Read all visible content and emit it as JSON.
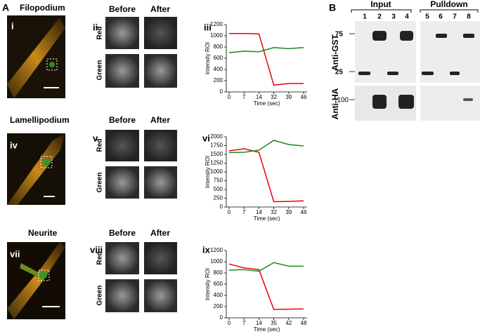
{
  "panel_letters": {
    "a": "A",
    "b": "B"
  },
  "rows": [
    {
      "title": "Filopodium",
      "image": "i",
      "pair": "ii"
    },
    {
      "title": "Lamellipodium",
      "image": "iv",
      "pair": "v"
    },
    {
      "title": "Neurite",
      "image": "vii",
      "pair": "viii"
    }
  ],
  "pair_labels": {
    "before": "Before",
    "after": "After",
    "red": "Red",
    "green": "Green"
  },
  "blot": {
    "groups": [
      "Input",
      "Pulldown"
    ],
    "lanes": [
      "1",
      "2",
      "3",
      "4",
      "5",
      "6",
      "7",
      "8"
    ],
    "markers": [
      "75",
      "25",
      "100"
    ],
    "antibodies": [
      "Anti-GST",
      "Anti-HA"
    ]
  },
  "chart_data": [
    {
      "type": "line",
      "label": "iii",
      "x_label": "Time (sec)",
      "y_label": "Intensity ROI",
      "categories": [
        "0",
        "7",
        "14",
        "32",
        "39",
        "46"
      ],
      "series": [
        {
          "name": "Red",
          "color": "#e8000b",
          "values": [
            1040,
            1040,
            1035,
            120,
            150,
            150
          ]
        },
        {
          "name": "Green",
          "color": "#1a8a1a",
          "values": [
            700,
            725,
            715,
            790,
            770,
            790
          ]
        }
      ],
      "ylim": [
        0,
        1200
      ],
      "yticks": [
        0,
        200,
        400,
        600,
        800,
        1000,
        1200
      ]
    },
    {
      "type": "line",
      "label": "vi",
      "x_label": "Time (sec)",
      "y_label": "Intensity ROI",
      "categories": [
        "0",
        "7",
        "14",
        "32",
        "39",
        "46"
      ],
      "series": [
        {
          "name": "Red",
          "color": "#e8000b",
          "values": [
            1600,
            1660,
            1560,
            150,
            160,
            175
          ]
        },
        {
          "name": "Green",
          "color": "#1a8a1a",
          "values": [
            1550,
            1560,
            1620,
            1900,
            1780,
            1740
          ]
        }
      ],
      "ylim": [
        0,
        2000
      ],
      "yticks": [
        0,
        250,
        500,
        750,
        1000,
        1250,
        1500,
        1750,
        2000
      ]
    },
    {
      "type": "line",
      "label": "ix",
      "x_label": "Time (sec)",
      "y_label": "Intensity ROI",
      "categories": [
        "0",
        "7",
        "14",
        "35",
        "42",
        "48"
      ],
      "series": [
        {
          "name": "Red",
          "color": "#e8000b",
          "values": [
            960,
            890,
            860,
            150,
            155,
            160
          ]
        },
        {
          "name": "Green",
          "color": "#1a8a1a",
          "values": [
            850,
            860,
            830,
            985,
            920,
            920
          ]
        }
      ],
      "ylim": [
        0,
        1200
      ],
      "yticks": [
        0,
        200,
        400,
        600,
        800,
        1000,
        1200
      ]
    }
  ]
}
